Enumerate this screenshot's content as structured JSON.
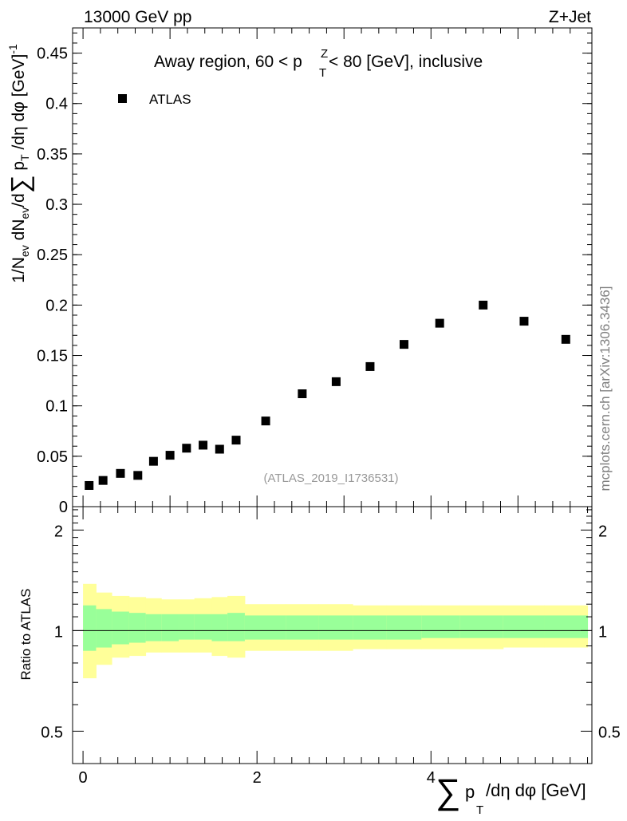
{
  "header": {
    "left": "13000 GeV pp",
    "right": "Z+Jet"
  },
  "side_label": "mcplots.cern.ch [arXiv:1306.3436]",
  "chart_data": [
    {
      "type": "scatter",
      "title": "Away region, 60 < p",
      "title_sup": "Z",
      "title_sub": "T",
      "title_tail": " < 80 [GeV], inclusive",
      "analysis_label": "(ATLAS_2019_I1736531)",
      "legend": {
        "label": "ATLAS",
        "position": "top-left"
      },
      "ylabel": "1/N_ev dN_ev/d∑p_T/dη dφ [GeV]^-1",
      "ylim": [
        0,
        0.475
      ],
      "xlim": [
        -0.12,
        5.85
      ],
      "yticks": [
        {
          "v": 0.05,
          "label": "0.05"
        },
        {
          "v": 0.1,
          "label": "0.1"
        },
        {
          "v": 0.15,
          "label": "0.15"
        },
        {
          "v": 0.2,
          "label": "0.2"
        },
        {
          "v": 0.25,
          "label": "0.25"
        },
        {
          "v": 0.3,
          "label": "0.3"
        },
        {
          "v": 0.35,
          "label": "0.35"
        },
        {
          "v": 0.4,
          "label": "0.4"
        },
        {
          "v": 0.45,
          "label": "0.45"
        },
        {
          "v": 0.0,
          "label": "0"
        }
      ],
      "series": [
        {
          "name": "ATLAS",
          "x": [
            0.07,
            0.23,
            0.43,
            0.63,
            0.81,
            1.0,
            1.19,
            1.38,
            1.57,
            1.76,
            2.1,
            2.52,
            2.91,
            3.3,
            3.69,
            4.1,
            4.6,
            5.07,
            5.55
          ],
          "y": [
            0.021,
            0.026,
            0.033,
            0.031,
            0.045,
            0.051,
            0.058,
            0.061,
            0.057,
            0.066,
            0.085,
            0.112,
            0.124,
            0.139,
            0.161,
            0.182,
            0.2,
            0.184,
            0.166
          ]
        }
      ]
    },
    {
      "type": "area",
      "ylabel": "Ratio to ATLAS",
      "xlabel": "∑ p_T /dη dφ [GeV]",
      "xlabel_sum": "∑",
      "xlabel_p": "p",
      "xlabel_sub": "T",
      "xlabel_tail": "/dη dφ [GeV]",
      "ylim": [
        0.4,
        2.35
      ],
      "xlim": [
        -0.12,
        5.85
      ],
      "yticks": [
        {
          "v": 0.5,
          "label": "0.5"
        },
        {
          "v": 1,
          "label": "1"
        },
        {
          "v": 2,
          "label": "2"
        }
      ],
      "xticks": [
        {
          "v": 0,
          "label": "0"
        },
        {
          "v": 2,
          "label": "2"
        },
        {
          "v": 4,
          "label": "4"
        }
      ],
      "bins": [
        0.0,
        0.15,
        0.33,
        0.53,
        0.72,
        0.9,
        1.1,
        1.28,
        1.48,
        1.66,
        1.86,
        2.33,
        2.71,
        3.1,
        3.49,
        3.89,
        4.33,
        4.83,
        5.3,
        5.8
      ],
      "green_band": [
        [
          0.87,
          1.19
        ],
        [
          0.89,
          1.16
        ],
        [
          0.91,
          1.14
        ],
        [
          0.92,
          1.13
        ],
        [
          0.93,
          1.12
        ],
        [
          0.93,
          1.12
        ],
        [
          0.94,
          1.12
        ],
        [
          0.94,
          1.12
        ],
        [
          0.93,
          1.12
        ],
        [
          0.93,
          1.13
        ],
        [
          0.94,
          1.11
        ],
        [
          0.94,
          1.11
        ],
        [
          0.94,
          1.11
        ],
        [
          0.94,
          1.11
        ],
        [
          0.94,
          1.11
        ],
        [
          0.95,
          1.11
        ],
        [
          0.95,
          1.11
        ],
        [
          0.95,
          1.11
        ],
        [
          0.95,
          1.11
        ]
      ],
      "yellow_band": [
        [
          0.72,
          1.38
        ],
        [
          0.79,
          1.3
        ],
        [
          0.83,
          1.27
        ],
        [
          0.84,
          1.26
        ],
        [
          0.86,
          1.25
        ],
        [
          0.86,
          1.24
        ],
        [
          0.86,
          1.24
        ],
        [
          0.86,
          1.25
        ],
        [
          0.84,
          1.26
        ],
        [
          0.83,
          1.27
        ],
        [
          0.87,
          1.2
        ],
        [
          0.87,
          1.2
        ],
        [
          0.87,
          1.2
        ],
        [
          0.88,
          1.19
        ],
        [
          0.88,
          1.19
        ],
        [
          0.88,
          1.19
        ],
        [
          0.88,
          1.19
        ],
        [
          0.89,
          1.19
        ],
        [
          0.89,
          1.19
        ]
      ],
      "reference_value": 1
    }
  ]
}
